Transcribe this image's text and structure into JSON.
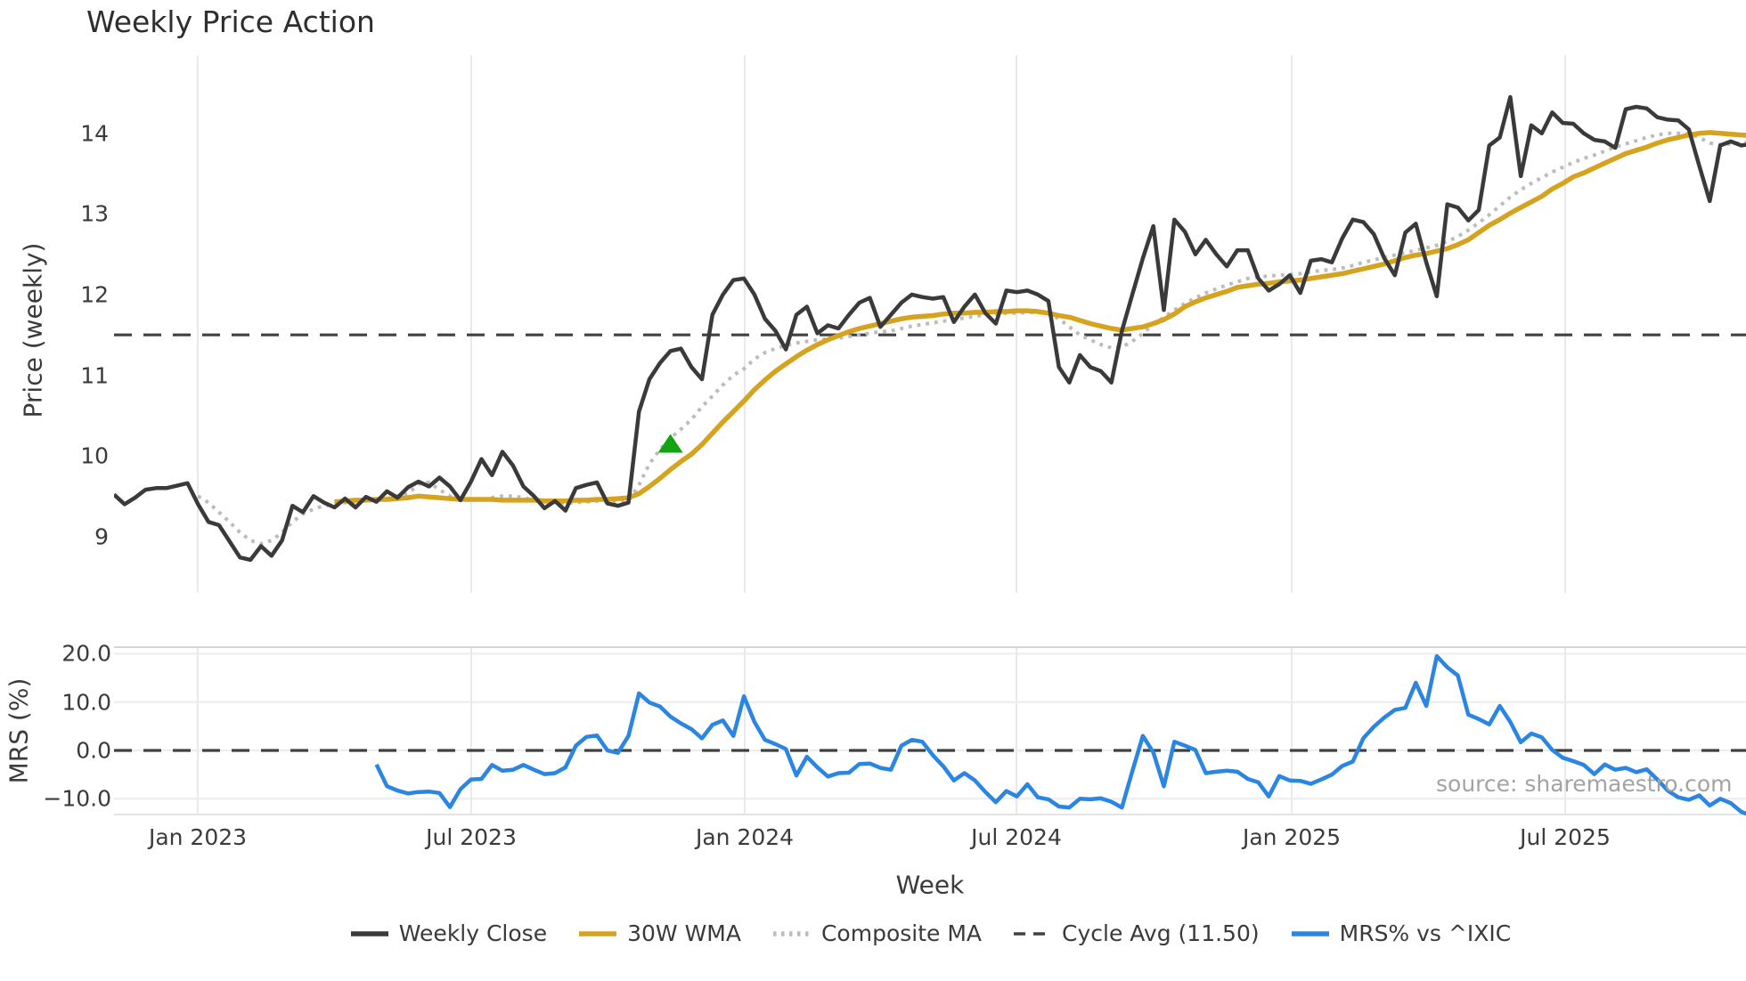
{
  "title": "Weekly Price Action",
  "source": "source: sharemaestro.com",
  "x_axis": {
    "label": "Week",
    "tick_labels": [
      "Jan 2023",
      "Jul 2023",
      "Jan 2024",
      "Jul 2024",
      "Jan 2025",
      "Jul 2025"
    ],
    "tick_week_positions": [
      7.98,
      34.03,
      60.08,
      85.96,
      112.18,
      138.23
    ],
    "weeks_total": 157
  },
  "legend": [
    {
      "label": "Weekly Close",
      "slug": "weekly-close",
      "color": "#3a3a3a",
      "style": "solid"
    },
    {
      "label": "30W WMA",
      "slug": "30w-wma",
      "color": "#d6a31f",
      "style": "solid"
    },
    {
      "label": "Composite MA",
      "slug": "composite-ma",
      "color": "#bcbcbc",
      "style": "dotted"
    },
    {
      "label": "Cycle Avg (11.50)",
      "slug": "cycle-avg",
      "color": "#414141",
      "style": "dashed"
    },
    {
      "label": "MRS% vs ^IXIC",
      "slug": "mrs-vs-ixic",
      "color": "#2b85e2",
      "style": "solid"
    }
  ],
  "colors": {
    "weekly_close": "#3a3a3a",
    "wma": "#d6a31f",
    "composite": "#bcbcbc",
    "cycle_avg": "#414141",
    "mrs": "#2b85e2",
    "signal_green": "#12a412",
    "grid": "#e9e9e9",
    "spine": "#d6d6d6",
    "text": "#3b3b3b",
    "source_text": "#a3a3a3"
  },
  "chart_data": [
    {
      "type": "line",
      "panel": "price",
      "title": "Weekly Price Action",
      "xlabel": "Week",
      "ylabel": "Price (weekly)",
      "ylim": [
        8.3,
        14.97
      ],
      "grid": "vertical-only",
      "y_ticks": {
        "labels": [
          "14",
          "13",
          "12",
          "11",
          "10",
          "9"
        ],
        "values": [
          14,
          13,
          12,
          11,
          10,
          9
        ]
      },
      "cycle_avg": 11.5,
      "series": [
        {
          "name": "Weekly Close",
          "slug": "weekly-close",
          "color": "#3a3a3a",
          "style": "solid",
          "width": 4.5,
          "start_index": 0,
          "values": [
            9.52,
            9.4,
            9.48,
            9.58,
            9.6,
            9.6,
            9.63,
            9.66,
            9.4,
            9.18,
            9.14,
            8.94,
            8.74,
            8.71,
            8.88,
            8.76,
            8.95,
            9.38,
            9.3,
            9.5,
            9.42,
            9.36,
            9.47,
            9.36,
            9.49,
            9.43,
            9.56,
            9.48,
            9.61,
            9.68,
            9.62,
            9.73,
            9.62,
            9.45,
            9.68,
            9.96,
            9.76,
            10.05,
            9.88,
            9.62,
            9.5,
            9.35,
            9.44,
            9.32,
            9.6,
            9.64,
            9.67,
            9.41,
            9.38,
            9.42,
            10.55,
            10.95,
            11.15,
            11.3,
            11.33,
            11.1,
            10.95,
            11.75,
            12.0,
            12.18,
            12.2,
            12.0,
            11.7,
            11.55,
            11.32,
            11.75,
            11.85,
            11.52,
            11.62,
            11.58,
            11.75,
            11.9,
            11.96,
            11.6,
            11.75,
            11.9,
            12.0,
            11.97,
            11.95,
            11.97,
            11.66,
            11.85,
            12.0,
            11.77,
            11.64,
            12.05,
            12.03,
            12.05,
            12.0,
            11.92,
            11.1,
            10.91,
            11.25,
            11.1,
            11.05,
            10.91,
            11.55,
            12.0,
            12.45,
            12.85,
            11.81,
            12.93,
            12.78,
            12.5,
            12.68,
            12.5,
            12.35,
            12.55,
            12.55,
            12.2,
            12.05,
            12.13,
            12.24,
            12.02,
            12.42,
            12.44,
            12.4,
            12.7,
            12.93,
            12.9,
            12.75,
            12.45,
            12.24,
            12.77,
            12.88,
            12.4,
            11.98,
            13.12,
            13.08,
            12.92,
            13.05,
            13.85,
            13.95,
            14.45,
            13.47,
            14.1,
            14.0,
            14.26,
            14.13,
            14.12,
            14.0,
            13.92,
            13.9,
            13.82,
            14.3,
            14.33,
            14.31,
            14.2,
            14.17,
            14.16,
            14.05,
            13.6,
            13.16,
            13.85,
            13.9,
            13.85,
            13.87
          ]
        },
        {
          "name": "30W WMA",
          "slug": "30w-wma",
          "color": "#d6a31f",
          "style": "solid",
          "width": 5.5,
          "start_index": 21,
          "values": [
            9.43,
            9.44,
            9.45,
            9.45,
            9.46,
            9.46,
            9.47,
            9.48,
            9.5,
            9.49,
            9.48,
            9.47,
            9.46,
            9.46,
            9.46,
            9.46,
            9.45,
            9.45,
            9.45,
            9.45,
            9.44,
            9.44,
            9.44,
            9.45,
            9.45,
            9.46,
            9.46,
            9.47,
            9.48,
            9.53,
            9.62,
            9.72,
            9.83,
            9.93,
            10.02,
            10.14,
            10.28,
            10.42,
            10.55,
            10.68,
            10.82,
            10.94,
            11.05,
            11.14,
            11.23,
            11.31,
            11.38,
            11.44,
            11.49,
            11.54,
            11.58,
            11.61,
            11.64,
            11.67,
            11.7,
            11.72,
            11.73,
            11.74,
            11.76,
            11.77,
            11.77,
            11.78,
            11.78,
            11.79,
            11.79,
            11.8,
            11.8,
            11.79,
            11.77,
            11.74,
            11.72,
            11.68,
            11.64,
            11.61,
            11.58,
            11.56,
            11.58,
            11.6,
            11.64,
            11.69,
            11.76,
            11.85,
            11.91,
            11.96,
            12.0,
            12.04,
            12.09,
            12.11,
            12.13,
            12.14,
            12.16,
            12.17,
            12.18,
            12.2,
            12.22,
            12.24,
            12.26,
            12.29,
            12.32,
            12.35,
            12.38,
            12.42,
            12.46,
            12.49,
            12.51,
            12.54,
            12.57,
            12.62,
            12.68,
            12.77,
            12.86,
            12.93,
            13.01,
            13.08,
            13.15,
            13.22,
            13.31,
            13.38,
            13.46,
            13.51,
            13.57,
            13.63,
            13.69,
            13.75,
            13.79,
            13.83,
            13.88,
            13.92,
            13.95,
            13.98,
            14.0,
            14.01,
            14.0,
            13.99,
            13.98,
            13.97
          ]
        },
        {
          "name": "Composite MA",
          "slug": "composite-ma",
          "color": "#bcbcbc",
          "style": "dotted",
          "width": 4,
          "start_index": 8,
          "values": [
            9.5,
            9.42,
            9.3,
            9.18,
            9.05,
            8.95,
            8.91,
            8.95,
            9.05,
            9.18,
            9.28,
            9.34,
            9.38,
            9.4,
            9.42,
            9.43,
            9.44,
            9.45,
            9.47,
            9.5,
            9.53,
            9.65,
            9.67,
            9.58,
            9.5,
            9.46,
            9.45,
            9.46,
            9.48,
            9.5,
            9.5,
            9.48,
            9.45,
            9.43,
            9.42,
            9.41,
            9.42,
            9.43,
            9.44,
            9.43,
            9.42,
            9.44,
            9.64,
            9.9,
            10.08,
            10.22,
            10.33,
            10.45,
            10.61,
            10.74,
            10.88,
            11.0,
            11.08,
            11.2,
            11.28,
            11.33,
            11.37,
            11.4,
            11.42,
            11.44,
            11.45,
            11.46,
            11.48,
            11.5,
            11.52,
            11.54,
            11.55,
            11.58,
            11.61,
            11.63,
            11.65,
            11.67,
            11.69,
            11.71,
            11.73,
            11.75,
            11.76,
            11.77,
            11.77,
            11.78,
            11.78,
            11.76,
            11.7,
            11.6,
            11.5,
            11.44,
            11.38,
            11.34,
            11.35,
            11.42,
            11.52,
            11.63,
            11.72,
            11.81,
            11.89,
            11.96,
            12.02,
            12.07,
            12.12,
            12.16,
            12.2,
            12.22,
            12.23,
            12.24,
            12.25,
            12.26,
            12.28,
            12.3,
            12.31,
            12.33,
            12.36,
            12.4,
            12.43,
            12.46,
            12.49,
            12.52,
            12.55,
            12.58,
            12.61,
            12.66,
            12.72,
            12.8,
            12.89,
            12.99,
            13.1,
            13.21,
            13.3,
            13.38,
            13.45,
            13.52,
            13.58,
            13.64,
            13.69,
            13.73,
            13.78,
            13.83,
            13.87,
            13.91,
            13.95,
            13.98,
            14.0,
            14.0,
            13.99,
            13.95,
            13.88,
            13.86,
            13.87,
            13.88,
            13.89
          ]
        },
        {
          "name": "Cycle Avg (11.50)",
          "slug": "cycle-avg",
          "color": "#414141",
          "style": "dashed",
          "width": 3.2,
          "constant": 11.5
        }
      ],
      "signal_marker": {
        "shape": "triangle-up",
        "color": "#12a412",
        "week_index": 53,
        "price": 10.15
      }
    },
    {
      "type": "line",
      "panel": "mrs",
      "ylabel": "MRS (%)",
      "ylim": [
        -13.44,
        21.36
      ],
      "grid": "both",
      "y_ticks": {
        "labels": [
          "20.0",
          "10.0",
          "0.0",
          "−10.0"
        ],
        "values": [
          20,
          10,
          0,
          -10
        ]
      },
      "zero_line": 0,
      "series": [
        {
          "name": "MRS% vs ^IXIC",
          "slug": "mrs-vs-ixic",
          "color": "#2b85e2",
          "style": "solid",
          "width": 4.5,
          "start_index": 25,
          "values": [
            -2.9,
            -7.4,
            -8.3,
            -8.9,
            -8.6,
            -8.5,
            -8.8,
            -11.7,
            -8.0,
            -6.0,
            -5.9,
            -3.0,
            -4.2,
            -4.0,
            -3.0,
            -4.0,
            -4.9,
            -4.7,
            -3.5,
            1.0,
            2.8,
            3.1,
            0.0,
            -0.5,
            3.0,
            11.8,
            9.9,
            9.1,
            7.0,
            5.6,
            4.4,
            2.5,
            5.3,
            6.2,
            3.0,
            11.2,
            5.9,
            2.2,
            1.3,
            0.3,
            -5.2,
            -1.3,
            -3.5,
            -5.4,
            -4.7,
            -4.6,
            -2.8,
            -2.7,
            -3.6,
            -4.0,
            1.0,
            2.2,
            1.8,
            -1.0,
            -3.3,
            -6.2,
            -4.7,
            -6.2,
            -8.6,
            -10.7,
            -8.4,
            -9.5,
            -7.0,
            -9.7,
            -10.1,
            -11.6,
            -11.8,
            -10.0,
            -10.1,
            -9.9,
            -10.6,
            -11.8,
            -4.3,
            3.0,
            -0.4,
            -7.4,
            1.8,
            1.0,
            0.1,
            -4.7,
            -4.4,
            -4.2,
            -4.4,
            -5.9,
            -6.6,
            -9.5,
            -5.3,
            -6.2,
            -6.3,
            -6.9,
            -6.0,
            -5.0,
            -3.2,
            -2.3,
            2.5,
            4.9,
            6.8,
            8.4,
            8.8,
            14.0,
            9.2,
            19.5,
            17.2,
            15.5,
            7.4,
            6.5,
            5.4,
            9.2,
            5.9,
            1.7,
            3.5,
            2.7,
            0.1,
            -1.5,
            -2.2,
            -3.0,
            -4.9,
            -2.9,
            -4.0,
            -3.6,
            -4.5,
            -3.9,
            -6.0,
            -8.3,
            -9.7,
            -10.2,
            -9.3,
            -11.4,
            -10.0,
            -10.9,
            -12.7,
            -13.5
          ]
        },
        {
          "name": "Zero line",
          "slug": "zero-line",
          "color": "#414141",
          "style": "dashed",
          "width": 3.2,
          "constant": 0,
          "no_legend": true
        }
      ]
    }
  ]
}
